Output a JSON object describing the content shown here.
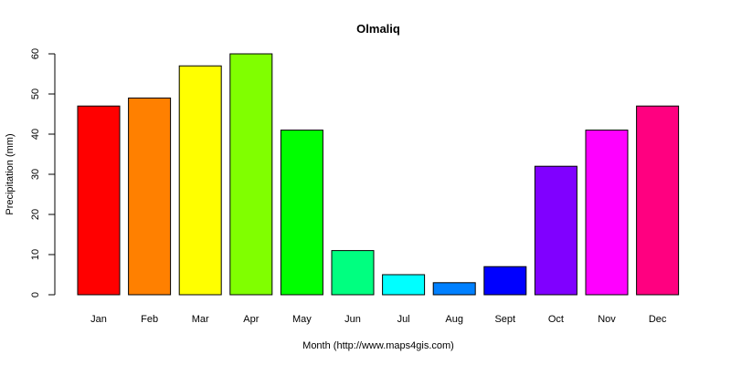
{
  "chart_data": {
    "type": "bar",
    "title": "Olmaliq",
    "xlabel": "Month (http://www.maps4gis.com)",
    "ylabel": "Precipitation (mm)",
    "categories": [
      "Jan",
      "Feb",
      "Mar",
      "Apr",
      "May",
      "Jun",
      "Jul",
      "Aug",
      "Sept",
      "Oct",
      "Nov",
      "Dec"
    ],
    "values": [
      47,
      49,
      57,
      60,
      41,
      11,
      5,
      3,
      7,
      32,
      41,
      47
    ],
    "colors": [
      "#FF0000",
      "#FF8000",
      "#FFFF00",
      "#80FF00",
      "#00FF00",
      "#00FF80",
      "#00FFFF",
      "#0080FF",
      "#0000FF",
      "#8000FF",
      "#FF00FF",
      "#FF0080"
    ],
    "ylim": [
      0,
      60
    ],
    "yticks": [
      0,
      10,
      20,
      30,
      40,
      50,
      60
    ],
    "grid": false,
    "legend": "none"
  }
}
